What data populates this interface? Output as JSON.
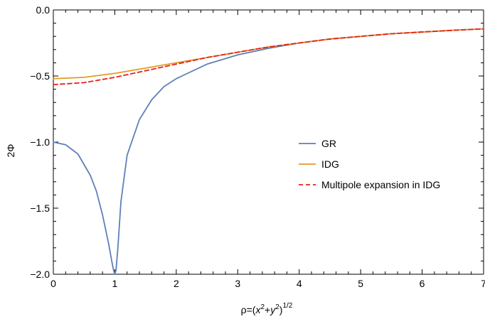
{
  "chart_data": {
    "type": "line",
    "title": "",
    "xlabel": "ρ=(x²+y²)¹ᐟ²",
    "xlabel_parts": {
      "rho_eq": "ρ=(",
      "x": "x",
      "two_a": "2",
      "plus": "+",
      "y": "y",
      "two_b": "2",
      "close": ")",
      "exp": "1/2"
    },
    "ylabel": "2Φ",
    "xlim": [
      0,
      7
    ],
    "ylim": [
      -2.0,
      0.0
    ],
    "x_ticks": [
      "0",
      "1",
      "2",
      "3",
      "4",
      "5",
      "6",
      "7"
    ],
    "y_ticks": [
      "0.0",
      "−0.5",
      "−1.0",
      "−1.5",
      "−2.0"
    ],
    "grid": false,
    "legend_position": "right",
    "series": [
      {
        "name": "GR",
        "color": "#5e81b5",
        "style": "solid",
        "x": [
          0,
          0.2,
          0.4,
          0.6,
          0.7,
          0.8,
          0.9,
          0.95,
          0.98,
          1.0,
          1.02,
          1.05,
          1.1,
          1.2,
          1.4,
          1.6,
          1.8,
          2.0,
          2.5,
          3.0,
          3.5,
          4.0,
          4.5,
          5.0,
          5.5,
          6.0,
          6.5,
          7.0
        ],
        "y": [
          -1.0,
          -1.02,
          -1.09,
          -1.25,
          -1.37,
          -1.55,
          -1.77,
          -1.9,
          -1.97,
          -2.0,
          -1.97,
          -1.8,
          -1.45,
          -1.1,
          -0.83,
          -0.68,
          -0.58,
          -0.52,
          -0.41,
          -0.34,
          -0.29,
          -0.25,
          -0.22,
          -0.2,
          -0.18,
          -0.167,
          -0.154,
          -0.143
        ]
      },
      {
        "name": "IDG",
        "color": "#e19c24",
        "style": "solid",
        "x": [
          0,
          0.5,
          1.0,
          1.5,
          2.0,
          2.5,
          3.0,
          3.5,
          4.0,
          4.5,
          5.0,
          5.5,
          6.0,
          6.5,
          7.0
        ],
        "y": [
          -0.52,
          -0.51,
          -0.48,
          -0.44,
          -0.4,
          -0.36,
          -0.32,
          -0.28,
          -0.25,
          -0.22,
          -0.2,
          -0.18,
          -0.167,
          -0.154,
          -0.143
        ]
      },
      {
        "name": "Multipole expansion in  IDG",
        "color": "#e8211a",
        "style": "dashed",
        "x": [
          0,
          0.5,
          1.0,
          1.5,
          2.0,
          2.5,
          3.0,
          3.5,
          4.0,
          4.5,
          5.0,
          5.5,
          6.0,
          6.5,
          7.0
        ],
        "y": [
          -0.565,
          -0.55,
          -0.51,
          -0.46,
          -0.41,
          -0.36,
          -0.32,
          -0.28,
          -0.25,
          -0.22,
          -0.2,
          -0.18,
          -0.167,
          -0.154,
          -0.143
        ]
      }
    ]
  }
}
